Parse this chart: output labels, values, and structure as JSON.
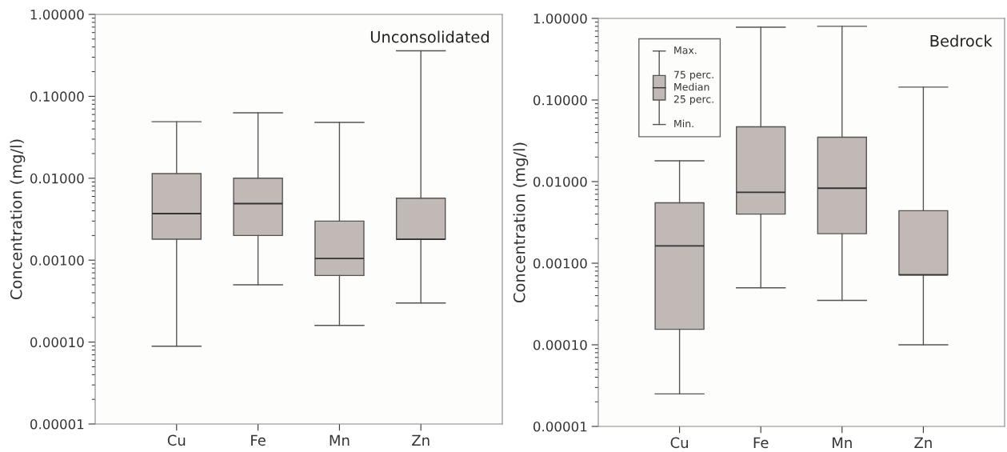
{
  "chart_data": [
    {
      "type": "box",
      "title": "Unconsolidated",
      "ylabel": "Concentration (mg/l)",
      "categories": [
        "Cu",
        "Fe",
        "Mn",
        "Zn"
      ],
      "log": "y",
      "grid": false,
      "ylim": [
        1e-05,
        1
      ],
      "yticks": [
        {
          "value": 1e-05,
          "label": "0.00001"
        },
        {
          "value": 0.0001,
          "label": "0.00010"
        },
        {
          "value": 0.001,
          "label": "0.00100"
        },
        {
          "value": 0.01,
          "label": "0.01000"
        },
        {
          "value": 0.1,
          "label": "0.10000"
        },
        {
          "value": 1,
          "label": "1.00000"
        }
      ],
      "series": [
        {
          "color": "#c1b9b6",
          "boxes": [
            {
              "low": 8.9e-05,
              "q1": 0.0018,
              "median": 0.0037,
              "q3": 0.0114,
              "high": 0.049
            },
            {
              "low": 0.0005,
              "q1": 0.002,
              "median": 0.0049,
              "q3": 0.01,
              "high": 0.063
            },
            {
              "low": 0.00016,
              "q1": 0.00065,
              "median": 0.00105,
              "q3": 0.003,
              "high": 0.048
            },
            {
              "low": 0.0003,
              "q1": 0.0018,
              "median": 0.0018,
              "q3": 0.0057,
              "high": 0.36
            }
          ]
        }
      ]
    },
    {
      "type": "box",
      "title": "Bedrock",
      "ylabel": "Concentration (mg/l)",
      "categories": [
        "Cu",
        "Fe",
        "Mn",
        "Zn"
      ],
      "log": "y",
      "grid": false,
      "ylim": [
        1e-05,
        1
      ],
      "yticks": [
        {
          "value": 1e-05,
          "label": "0.00001"
        },
        {
          "value": 0.0001,
          "label": "0.00010"
        },
        {
          "value": 0.001,
          "label": "0.00100"
        },
        {
          "value": 0.01,
          "label": "0.01000"
        },
        {
          "value": 0.1,
          "label": "0.10000"
        },
        {
          "value": 1,
          "label": "1.00000"
        }
      ],
      "annotations": [
        "Max.",
        "75 perc.",
        "Median",
        "25 perc.",
        "Min."
      ],
      "series": [
        {
          "color": "#c1b9b6",
          "boxes": [
            {
              "low": 2.5e-05,
              "q1": 0.000155,
              "median": 0.00163,
              "q3": 0.0055,
              "high": 0.018
            },
            {
              "low": 0.0005,
              "q1": 0.004,
              "median": 0.0074,
              "q3": 0.047,
              "high": 0.78
            },
            {
              "low": 0.00035,
              "q1": 0.0023,
              "median": 0.0083,
              "q3": 0.035,
              "high": 0.8
            },
            {
              "low": 0.0001,
              "q1": 0.00072,
              "median": 0.00072,
              "q3": 0.0044,
              "high": 0.144
            }
          ]
        }
      ]
    }
  ]
}
